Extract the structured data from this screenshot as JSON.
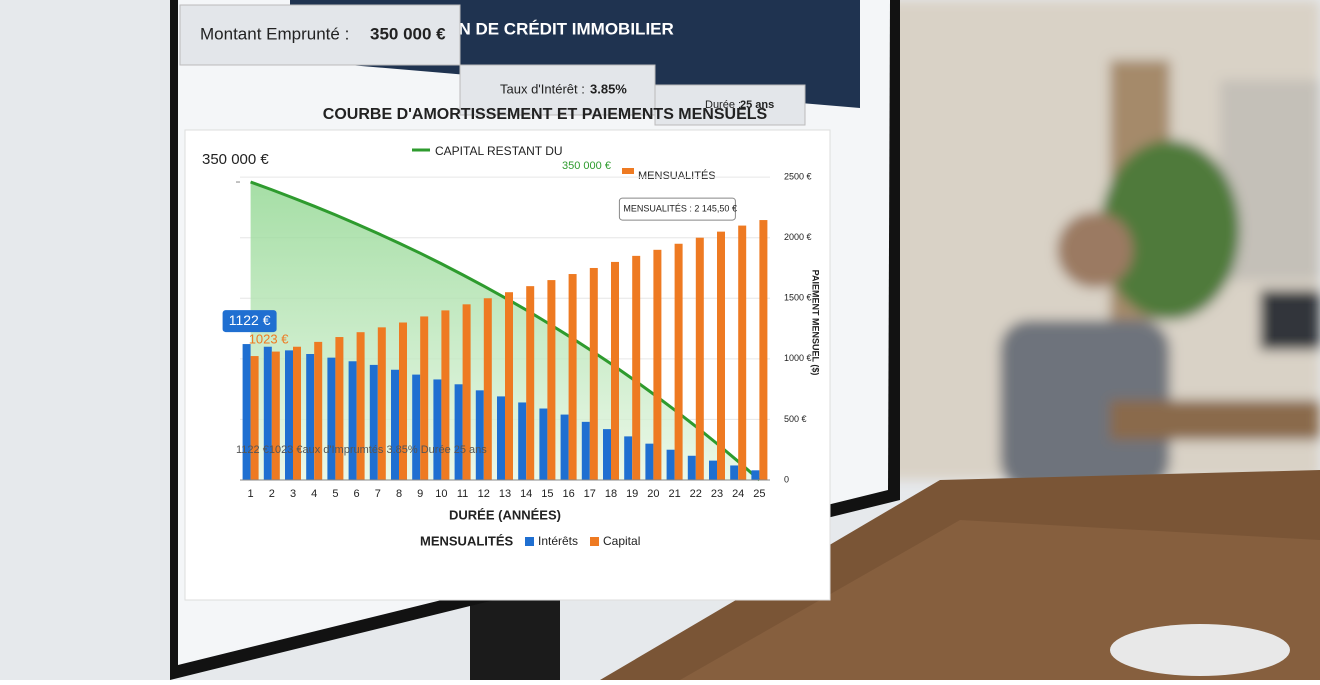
{
  "header": {
    "title": "SIMULATION DE CRÉDIT IMMOBILIER"
  },
  "inputs": [
    {
      "label": "Montant Emprunté :",
      "value": "350 000 €"
    },
    {
      "label": "Taux d'Intérêt :",
      "value": "3.85%"
    },
    {
      "label": "Durée :",
      "value": "25 ans"
    }
  ],
  "chart_data": {
    "type": "bar",
    "title": "COURBE D'AMORTISSEMENT ET PAIEMENTS MENSUELS",
    "capital_legend_value": "350 000 €",
    "top_legend_bars": "MENSUALITÉS",
    "bottom_legend_title": "MENSUALITÉS",
    "xlabel": "DURÉE (ANNÉES)",
    "y2label": "PAIEMENT MENSUEL ($)",
    "annotation": "1122 €1023 €aux d'Imprumtés 3.85% Durée 25 ans",
    "categories": [
      "1",
      "2",
      "3",
      "4",
      "5",
      "6",
      "7",
      "8",
      "9",
      "10",
      "11",
      "12",
      "13",
      "14",
      "15",
      "16",
      "17",
      "18",
      "19",
      "20",
      "21",
      "22",
      "23",
      "24",
      "25"
    ],
    "ylim": [
      0,
      370000
    ],
    "yticks": [
      {
        "value": 350000,
        "label": "350 000 €"
      }
    ],
    "y2lim": [
      0,
      2600
    ],
    "y2ticks": [
      0,
      {
        "value": 500,
        "label": "500 €"
      },
      {
        "value": 1000,
        "label": "1000 €"
      },
      {
        "value": 1500,
        "label": "1500 €"
      },
      {
        "value": 2000,
        "label": "2000 €"
      },
      {
        "value": 2500,
        "label": "2500 €"
      }
    ],
    "grid": true,
    "series": [
      {
        "name": "CAPITAL RESTANT DU",
        "type": "line",
        "color": "#2e9b2e",
        "values": [
          350000,
          340900,
          331400,
          321600,
          311400,
          300700,
          289700,
          278200,
          266400,
          254000,
          241100,
          227800,
          214000,
          199700,
          184700,
          169200,
          153100,
          136500,
          119100,
          101000,
          82300,
          62900,
          42700,
          21800,
          0
        ]
      },
      {
        "name": "Intérêts",
        "type": "bar",
        "axis": "y2",
        "color": "#1f6fd1",
        "values": [
          1122,
          1100,
          1070,
          1040,
          1010,
          980,
          950,
          910,
          870,
          830,
          790,
          740,
          690,
          640,
          590,
          540,
          480,
          420,
          360,
          300,
          250,
          200,
          160,
          120,
          80
        ],
        "value_labels": [
          "1122 €",
          null,
          null,
          null,
          null,
          null,
          null,
          null,
          null,
          null,
          null,
          null,
          null,
          null,
          null,
          null,
          null,
          null,
          null,
          null,
          null,
          null,
          null,
          null,
          null
        ]
      },
      {
        "name": "Capital",
        "type": "bar",
        "axis": "y2",
        "color": "#ee7a22",
        "values": [
          1023,
          1060,
          1100,
          1140,
          1180,
          1220,
          1260,
          1300,
          1350,
          1400,
          1450,
          1500,
          1550,
          1600,
          1650,
          1700,
          1750,
          1800,
          1850,
          1900,
          1950,
          2000,
          2050,
          2100,
          2145.5
        ],
        "value_labels": [
          "1023 €",
          null,
          null,
          null,
          null,
          null,
          null,
          null,
          null,
          null,
          null,
          null,
          null,
          null,
          null,
          null,
          null,
          null,
          null,
          null,
          null,
          null,
          null,
          null,
          "MENSUALITÉS : 2 145,50 €"
        ]
      }
    ]
  }
}
